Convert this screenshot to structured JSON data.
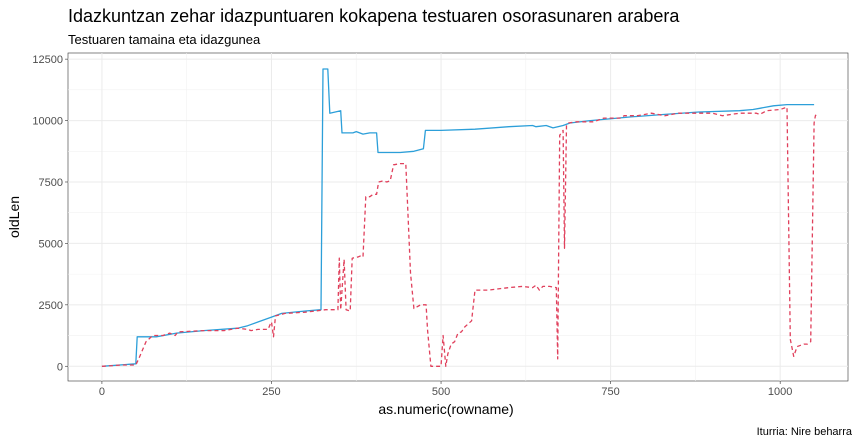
{
  "chart_data": {
    "type": "line",
    "title": "Idazkuntzan zehar idazpuntuaren kokapena testuaren osorasunaren arabera",
    "subtitle": "Testuaren tamaina eta idazgunea",
    "xlabel": "as.numeric(rowname)",
    "ylabel": "oldLen",
    "caption": "Iturria: Nire beharra",
    "xlim": [
      -50,
      1100
    ],
    "ylim": [
      -600,
      12750
    ],
    "x_ticks": [
      0,
      250,
      500,
      750,
      1000
    ],
    "x_tick_labels": [
      "0",
      "250",
      "500",
      "750",
      "1000"
    ],
    "y_ticks": [
      0,
      2500,
      5000,
      7500,
      10000,
      12500
    ],
    "y_tick_labels": [
      "0",
      "2500",
      "5000",
      "7500",
      "10000",
      "12500"
    ],
    "grid": true,
    "legend": "none",
    "series": [
      {
        "color": "#2c9fd9",
        "dash": "solid",
        "points": [
          [
            0,
            0
          ],
          [
            50,
            100
          ],
          [
            52,
            1200
          ],
          [
            80,
            1200
          ],
          [
            110,
            1350
          ],
          [
            150,
            1450
          ],
          [
            200,
            1550
          ],
          [
            215,
            1650
          ],
          [
            230,
            1800
          ],
          [
            250,
            2000
          ],
          [
            265,
            2150
          ],
          [
            300,
            2250
          ],
          [
            323,
            2300
          ],
          [
            326,
            12100
          ],
          [
            333,
            12100
          ],
          [
            336,
            10300
          ],
          [
            352,
            10400
          ],
          [
            354,
            9500
          ],
          [
            370,
            9500
          ],
          [
            375,
            9550
          ],
          [
            385,
            9450
          ],
          [
            395,
            9500
          ],
          [
            405,
            9500
          ],
          [
            407,
            8700
          ],
          [
            425,
            8700
          ],
          [
            440,
            8700
          ],
          [
            460,
            8750
          ],
          [
            474,
            8850
          ],
          [
            477,
            9600
          ],
          [
            500,
            9600
          ],
          [
            550,
            9650
          ],
          [
            600,
            9750
          ],
          [
            635,
            9800
          ],
          [
            640,
            9750
          ],
          [
            655,
            9800
          ],
          [
            665,
            9700
          ],
          [
            680,
            9800
          ],
          [
            690,
            9900
          ],
          [
            720,
            10000
          ],
          [
            780,
            10150
          ],
          [
            830,
            10250
          ],
          [
            880,
            10350
          ],
          [
            940,
            10400
          ],
          [
            960,
            10450
          ],
          [
            970,
            10500
          ],
          [
            990,
            10600
          ],
          [
            1010,
            10650
          ],
          [
            1050,
            10650
          ]
        ]
      },
      {
        "color": "#e0405c",
        "dash": "dashed",
        "points": [
          [
            0,
            0
          ],
          [
            30,
            50
          ],
          [
            50,
            50
          ],
          [
            55,
            350
          ],
          [
            65,
            1000
          ],
          [
            75,
            1250
          ],
          [
            90,
            1250
          ],
          [
            100,
            1350
          ],
          [
            108,
            1250
          ],
          [
            112,
            1400
          ],
          [
            150,
            1450
          ],
          [
            180,
            1450
          ],
          [
            200,
            1550
          ],
          [
            215,
            1500
          ],
          [
            220,
            1450
          ],
          [
            230,
            1500
          ],
          [
            245,
            1500
          ],
          [
            248,
            1700
          ],
          [
            250,
            1800
          ],
          [
            253,
            1200
          ],
          [
            256,
            2050
          ],
          [
            270,
            2150
          ],
          [
            300,
            2200
          ],
          [
            330,
            2300
          ],
          [
            348,
            2300
          ],
          [
            350,
            4400
          ],
          [
            352,
            2300
          ],
          [
            357,
            4350
          ],
          [
            360,
            2300
          ],
          [
            366,
            2250
          ],
          [
            369,
            4400
          ],
          [
            378,
            4450
          ],
          [
            382,
            4500
          ],
          [
            385,
            4450
          ],
          [
            389,
            6900
          ],
          [
            395,
            6900
          ],
          [
            400,
            7000
          ],
          [
            405,
            7000
          ],
          [
            408,
            7500
          ],
          [
            415,
            7550
          ],
          [
            420,
            7500
          ],
          [
            425,
            7550
          ],
          [
            430,
            8200
          ],
          [
            440,
            8250
          ],
          [
            448,
            8250
          ],
          [
            455,
            3800
          ],
          [
            460,
            2350
          ],
          [
            470,
            2500
          ],
          [
            478,
            2500
          ],
          [
            480,
            1500
          ],
          [
            485,
            0
          ],
          [
            490,
            0
          ],
          [
            500,
            0
          ],
          [
            503,
            1250
          ],
          [
            507,
            0
          ],
          [
            510,
            500
          ],
          [
            515,
            900
          ],
          [
            520,
            1000
          ],
          [
            525,
            1350
          ],
          [
            530,
            1400
          ],
          [
            535,
            1600
          ],
          [
            545,
            1850
          ],
          [
            550,
            3100
          ],
          [
            570,
            3100
          ],
          [
            600,
            3200
          ],
          [
            620,
            3250
          ],
          [
            635,
            3200
          ],
          [
            640,
            3300
          ],
          [
            645,
            3100
          ],
          [
            650,
            3250
          ],
          [
            660,
            3250
          ],
          [
            670,
            3200
          ],
          [
            672,
            300
          ],
          [
            675,
            9400
          ],
          [
            680,
            9600
          ],
          [
            682,
            4800
          ],
          [
            685,
            9800
          ],
          [
            688,
            9900
          ],
          [
            700,
            9950
          ],
          [
            725,
            9950
          ],
          [
            740,
            10100
          ],
          [
            765,
            10100
          ],
          [
            770,
            10200
          ],
          [
            790,
            10200
          ],
          [
            810,
            10300
          ],
          [
            830,
            10200
          ],
          [
            850,
            10300
          ],
          [
            870,
            10300
          ],
          [
            900,
            10300
          ],
          [
            915,
            10200
          ],
          [
            940,
            10300
          ],
          [
            965,
            10300
          ],
          [
            970,
            10250
          ],
          [
            980,
            10400
          ],
          [
            1000,
            10450
          ],
          [
            1010,
            10550
          ],
          [
            1015,
            1100
          ],
          [
            1020,
            400
          ],
          [
            1025,
            800
          ],
          [
            1035,
            900
          ],
          [
            1040,
            900
          ],
          [
            1045,
            1000
          ],
          [
            1050,
            9900
          ],
          [
            1052,
            10200
          ],
          [
            1055,
            10300
          ]
        ]
      }
    ]
  }
}
